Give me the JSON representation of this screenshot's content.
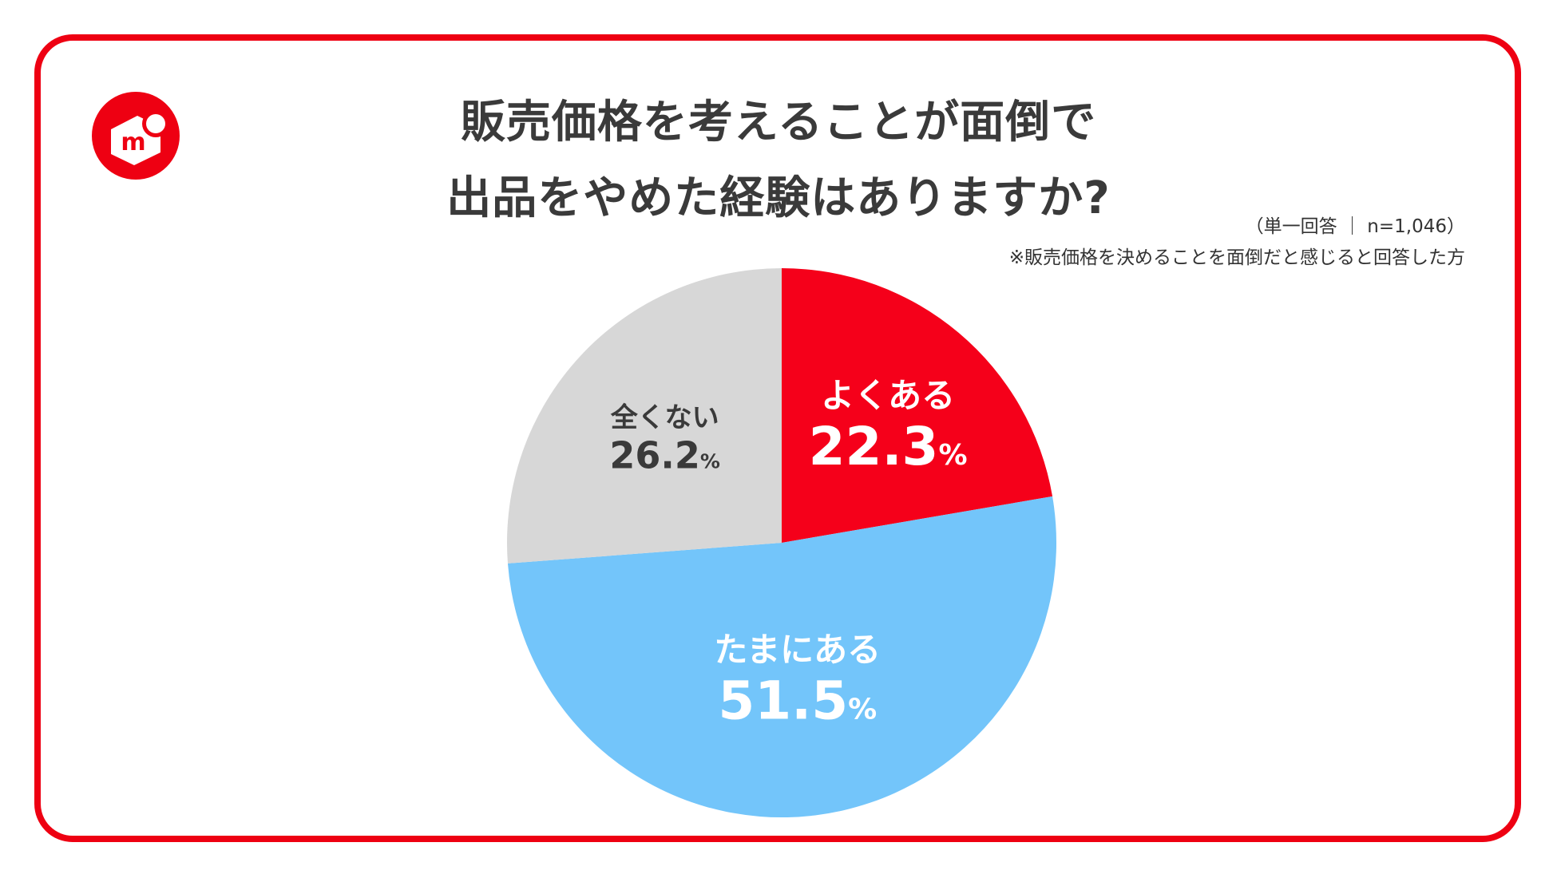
{
  "title": {
    "line1": "販売価格を考えることが面倒で",
    "line2": "出品をやめた経験はありますか?"
  },
  "notes": {
    "base": "（単一回答 ｜ n=1,046）",
    "footnote": "※販売価格を決めることを面倒だと感じると回答した方"
  },
  "logo": {
    "icon": "mercari-logo-icon",
    "letter": "m",
    "color": "#ee0012"
  },
  "colors": {
    "frame": "#ee0012",
    "title": "#3a3a3a"
  },
  "chart_data": {
    "type": "pie",
    "start": "12 o'clock, clockwise",
    "slices": [
      {
        "label": "よくある",
        "value": 22.3,
        "display": "22.3",
        "unit": "%",
        "color": "#f5001a",
        "text_color": "#ffffff"
      },
      {
        "label": "たまにある",
        "value": 51.5,
        "display": "51.5",
        "unit": "%",
        "color": "#73c5fa",
        "text_color": "#ffffff"
      },
      {
        "label": "全くない",
        "value": 26.2,
        "display": "26.2",
        "unit": "%",
        "color": "#d7d7d7",
        "text_color": "#3a3a3a"
      }
    ]
  }
}
